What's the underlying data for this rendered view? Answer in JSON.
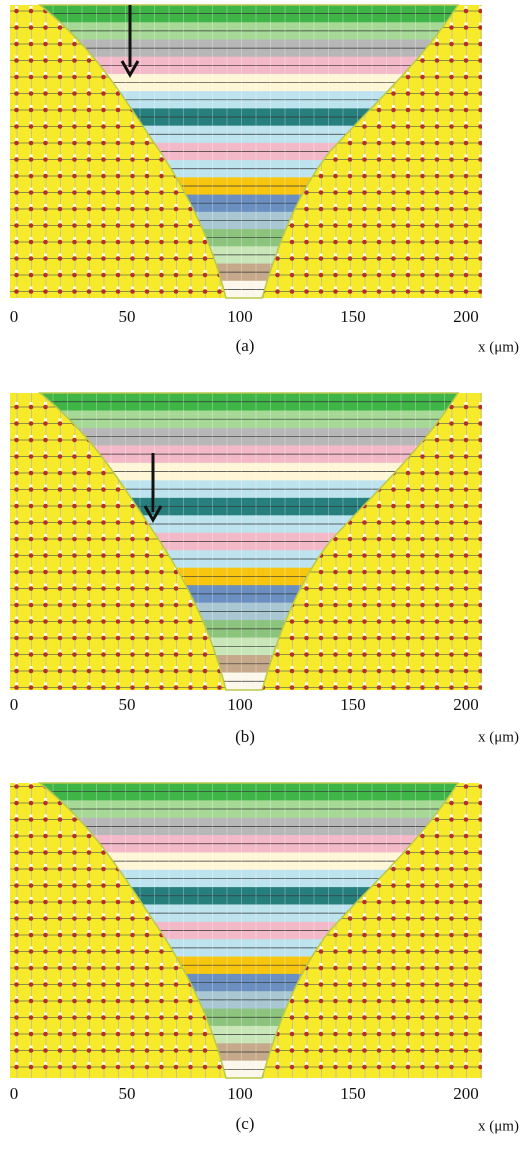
{
  "panels": [
    {
      "label": "(a)",
      "ticks": [
        0,
        50,
        100,
        150,
        200
      ],
      "axis_label": "x (μm)"
    },
    {
      "label": "(b)",
      "ticks": [
        0,
        50,
        100,
        150,
        200
      ],
      "axis_label": "x (μm)"
    },
    {
      "label": "(c)",
      "ticks": [
        0,
        50,
        100,
        150,
        200
      ],
      "axis_label": "x (μm)"
    }
  ]
}
